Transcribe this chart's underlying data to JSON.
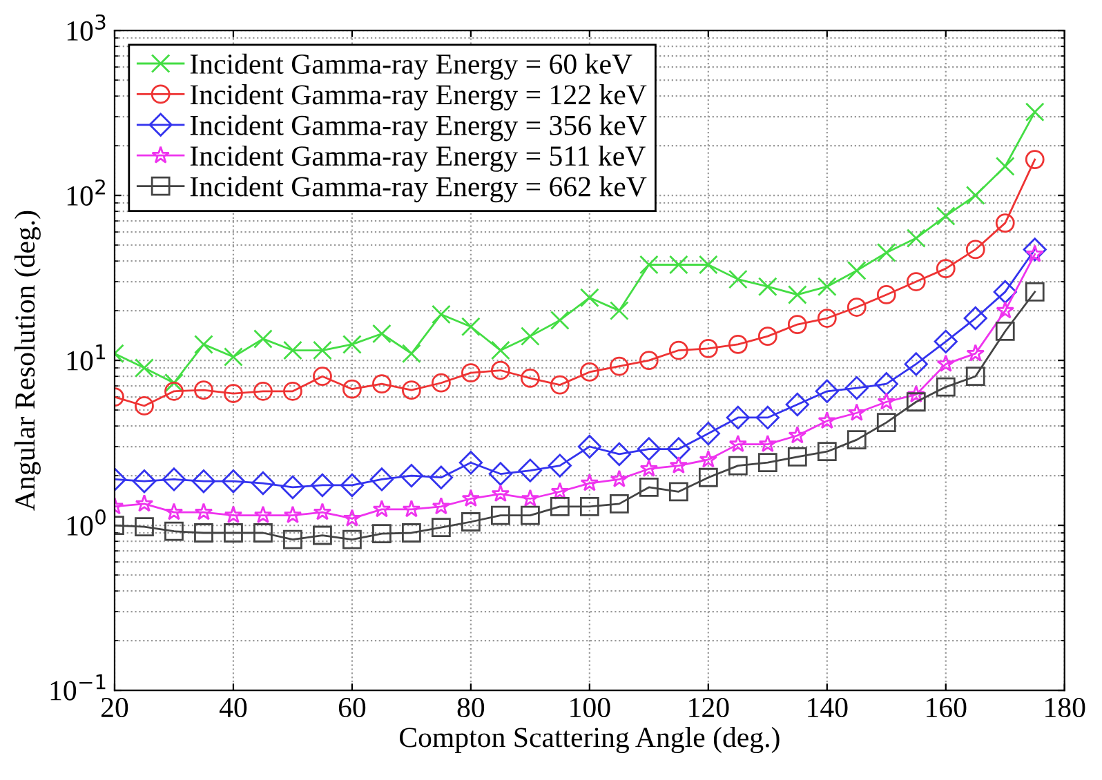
{
  "chart_data": {
    "type": "line",
    "xlabel": "Compton Scattering Angle (deg.)",
    "ylabel": "Angular Resolution (deg.)",
    "log": "y",
    "grid": true,
    "legend": "top left",
    "x": [
      20,
      25,
      30,
      35,
      40,
      45,
      50,
      55,
      60,
      65,
      70,
      75,
      80,
      85,
      90,
      95,
      100,
      105,
      110,
      115,
      120,
      125,
      130,
      135,
      140,
      145,
      150,
      155,
      160,
      165,
      170,
      175
    ],
    "xlim": [
      20,
      180
    ],
    "xticks": [
      20,
      40,
      60,
      80,
      100,
      120,
      140,
      160,
      180
    ],
    "ylim": [
      0.1,
      1000
    ],
    "yticks": [
      {
        "value": 0.1,
        "label": "10$^{−1}$"
      },
      {
        "value": 1,
        "label": "10$^{0}$"
      },
      {
        "value": 10,
        "label": "10$^{1}$"
      },
      {
        "value": 100,
        "label": "10$^{2}$"
      },
      {
        "value": 1000,
        "label": "10$^{3}$"
      }
    ],
    "series": [
      {
        "name": "Incident Gamma-ray Energy = 60 keV",
        "color": "#44dd44",
        "marker": "cross",
        "values": [
          11,
          9,
          7.3,
          12.5,
          10.5,
          13.5,
          11.5,
          11.5,
          12.5,
          14.5,
          11,
          19,
          16,
          11.5,
          14,
          17.5,
          24,
          20,
          38,
          38,
          38,
          31,
          28,
          25,
          28,
          35,
          45,
          55,
          75,
          100,
          150,
          320
        ]
      },
      {
        "name": "Incident Gamma-ray Energy = 122 keV",
        "color": "#ee3333",
        "marker": "circle",
        "values": [
          6,
          5.3,
          6.5,
          6.6,
          6.3,
          6.5,
          6.5,
          8,
          6.7,
          7.2,
          6.6,
          7.3,
          8.4,
          8.7,
          7.8,
          7.1,
          8.5,
          9.2,
          10,
          11.5,
          11.8,
          12.5,
          14,
          16.5,
          18,
          21,
          25,
          30,
          36,
          47,
          68,
          165
        ]
      },
      {
        "name": "Incident Gamma-ray Energy = 356 keV",
        "color": "#3333ee",
        "marker": "diamond",
        "values": [
          1.9,
          1.85,
          1.9,
          1.85,
          1.85,
          1.8,
          1.7,
          1.75,
          1.75,
          1.9,
          2.0,
          1.95,
          2.4,
          2.05,
          2.15,
          2.3,
          3.0,
          2.7,
          2.9,
          2.9,
          3.6,
          4.5,
          4.5,
          5.4,
          6.5,
          6.8,
          7.2,
          9.5,
          13,
          18,
          26,
          47
        ]
      },
      {
        "name": "Incident Gamma-ray Energy = 511 keV",
        "color": "#ee33ee",
        "marker": "star",
        "values": [
          1.3,
          1.35,
          1.2,
          1.2,
          1.15,
          1.15,
          1.15,
          1.2,
          1.1,
          1.25,
          1.25,
          1.3,
          1.45,
          1.55,
          1.45,
          1.6,
          1.8,
          1.9,
          2.2,
          2.3,
          2.5,
          3.1,
          3.1,
          3.5,
          4.3,
          4.8,
          5.6,
          6.2,
          9.5,
          11,
          20,
          44
        ]
      },
      {
        "name": "Incident Gamma-ray Energy = 662 keV",
        "color": "#444444",
        "marker": "square",
        "values": [
          1.0,
          0.98,
          0.92,
          0.9,
          0.9,
          0.9,
          0.82,
          0.87,
          0.82,
          0.89,
          0.9,
          0.97,
          1.05,
          1.15,
          1.15,
          1.3,
          1.3,
          1.35,
          1.7,
          1.6,
          1.95,
          2.3,
          2.4,
          2.6,
          2.8,
          3.3,
          4.2,
          5.6,
          6.9,
          8,
          15,
          26
        ]
      }
    ]
  }
}
